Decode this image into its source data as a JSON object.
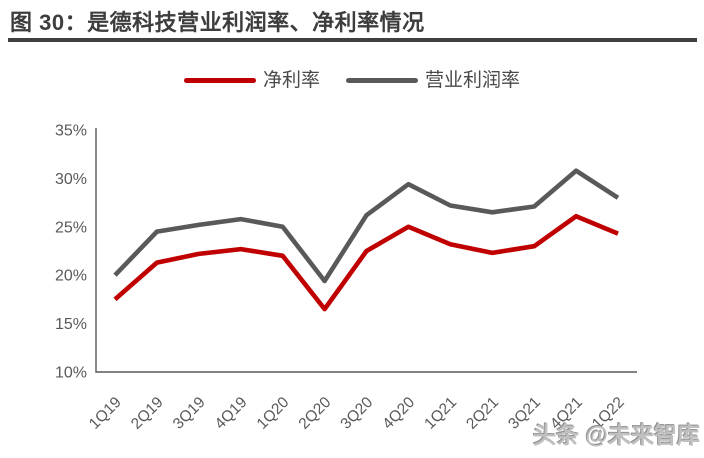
{
  "header": {
    "title": "图 30：是德科技营业利润率、净利率情况"
  },
  "chart_data": {
    "type": "line",
    "title": "是德科技营业利润率、净利率情况",
    "categories": [
      "1Q19",
      "2Q19",
      "3Q19",
      "4Q19",
      "1Q20",
      "2Q20",
      "3Q20",
      "4Q20",
      "1Q21",
      "2Q21",
      "3Q21",
      "4Q21",
      "1Q22"
    ],
    "series": [
      {
        "key": "net-margin",
        "name": "净利率",
        "color": "#c00000",
        "values": [
          17.5,
          21.3,
          22.2,
          22.7,
          22.0,
          16.5,
          22.5,
          25.0,
          23.2,
          22.3,
          23.0,
          26.1,
          24.3
        ]
      },
      {
        "key": "operating-margin",
        "name": "营业利润率",
        "color": "#595959",
        "values": [
          20.0,
          24.5,
          25.2,
          25.8,
          25.0,
          19.4,
          26.2,
          29.4,
          27.2,
          26.5,
          27.1,
          30.8,
          28.0
        ]
      }
    ],
    "ylim": [
      10,
      35
    ],
    "yticks": [
      {
        "value": 10,
        "label": "10%"
      },
      {
        "value": 15,
        "label": "15%"
      },
      {
        "value": 20,
        "label": "20%"
      },
      {
        "value": 25,
        "label": "25%"
      },
      {
        "value": 30,
        "label": "30%"
      },
      {
        "value": 35,
        "label": "35%"
      }
    ],
    "grid": false,
    "legend_position": "top",
    "axis_color": "#595959",
    "tick_label_color": "#595959"
  },
  "watermark": {
    "text": "头条 @未来智库"
  }
}
